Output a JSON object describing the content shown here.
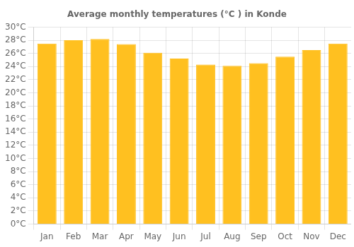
{
  "chart_data": {
    "type": "bar",
    "title": "Average monthly temperatures (°C ) in Konde",
    "categories": [
      "Jan",
      "Feb",
      "Mar",
      "Apr",
      "May",
      "Jun",
      "Jul",
      "Aug",
      "Sep",
      "Oct",
      "Nov",
      "Dec"
    ],
    "values": [
      27.5,
      28.0,
      28.2,
      27.4,
      26.1,
      25.2,
      24.3,
      24.1,
      24.5,
      25.5,
      26.5,
      27.5
    ],
    "color": "#FFC020",
    "ylim": [
      0,
      30
    ],
    "yticks": [
      {
        "value": 0,
        "label": "0°C"
      },
      {
        "value": 2,
        "label": "2°C"
      },
      {
        "value": 4,
        "label": "4°C"
      },
      {
        "value": 6,
        "label": "6°C"
      },
      {
        "value": 8,
        "label": "8°C"
      },
      {
        "value": 10,
        "label": "10°C"
      },
      {
        "value": 12,
        "label": "12°C"
      },
      {
        "value": 14,
        "label": "14°C"
      },
      {
        "value": 16,
        "label": "16°C"
      },
      {
        "value": 18,
        "label": "18°C"
      },
      {
        "value": 20,
        "label": "20°C"
      },
      {
        "value": 22,
        "label": "22°C"
      },
      {
        "value": 24,
        "label": "24°C"
      },
      {
        "value": 26,
        "label": "26°C"
      },
      {
        "value": 28,
        "label": "28°C"
      },
      {
        "value": 30,
        "label": "30°C"
      }
    ],
    "grid": true
  }
}
